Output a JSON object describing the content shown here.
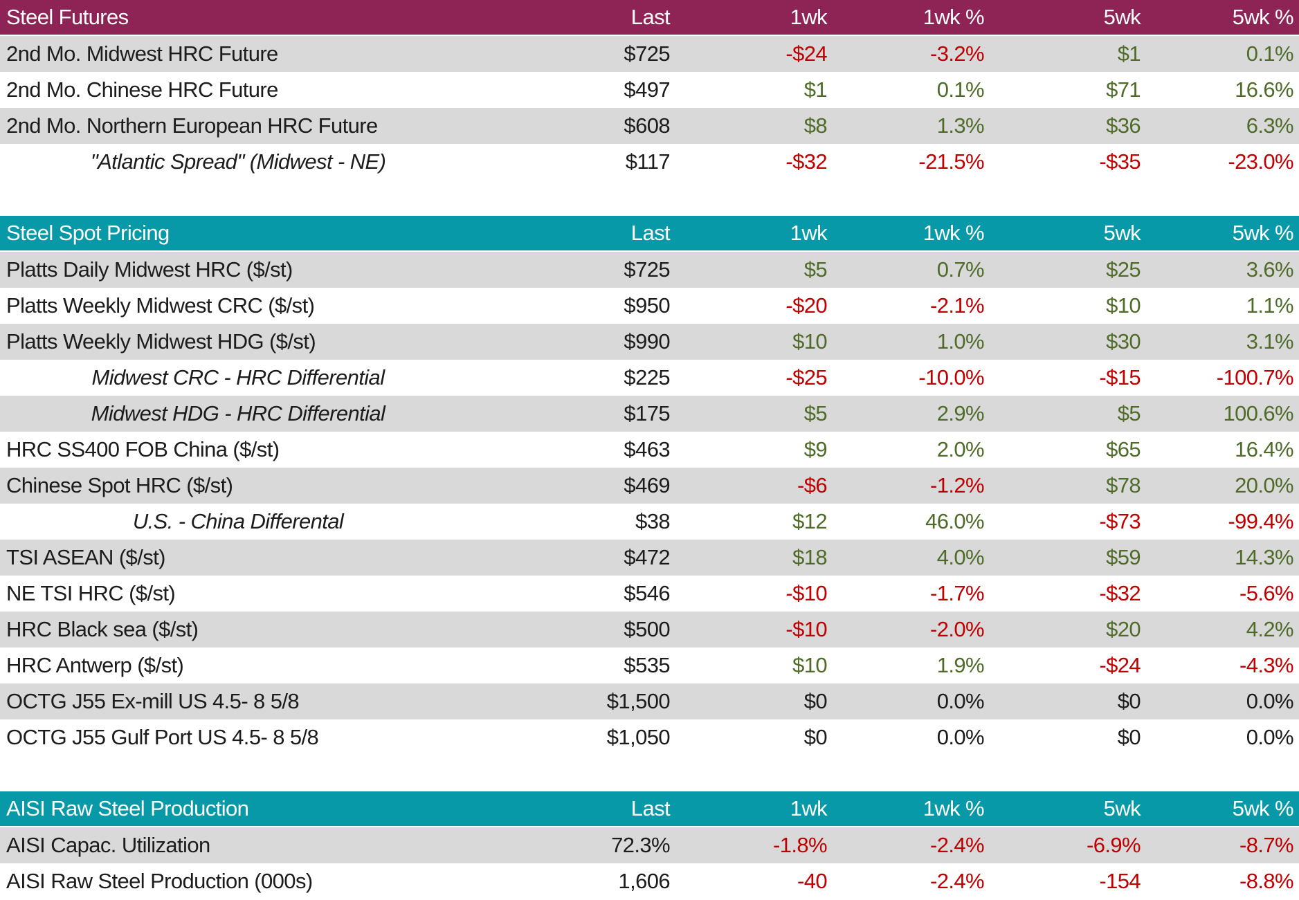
{
  "colors": {
    "maroon": "#8D2455",
    "teal": "#0899A8",
    "stripe_gray": "#D9D9D9",
    "row_white": "#FFFFFF",
    "positive": "#4F6B28",
    "negative": "#C00000",
    "neutral": "#1C1C1C",
    "header_text": "#FFFFFF"
  },
  "columns": [
    "Last",
    "1wk",
    "1wk %",
    "5wk",
    "5wk %"
  ],
  "sections": [
    {
      "title": "Steel Futures",
      "header_color_key": "maroon",
      "rows": [
        {
          "label": "2nd Mo. Midwest HRC Future",
          "italic": false,
          "values": [
            "$725",
            "-$24",
            "-3.2%",
            "$1",
            "0.1%"
          ],
          "tones": [
            "neu",
            "neg",
            "neg",
            "pos",
            "pos"
          ]
        },
        {
          "label": "2nd Mo. Chinese HRC Future",
          "italic": false,
          "values": [
            "$497",
            "$1",
            "0.1%",
            "$71",
            "16.6%"
          ],
          "tones": [
            "neu",
            "pos",
            "pos",
            "pos",
            "pos"
          ]
        },
        {
          "label": "2nd Mo. Northern European HRC Future",
          "italic": false,
          "values": [
            "$608",
            "$8",
            "1.3%",
            "$36",
            "6.3%"
          ],
          "tones": [
            "neu",
            "pos",
            "pos",
            "pos",
            "pos"
          ]
        },
        {
          "label": "\"Atlantic Spread\" (Midwest - NE)",
          "italic": true,
          "values": [
            "$117",
            "-$32",
            "-21.5%",
            "-$35",
            "-23.0%"
          ],
          "tones": [
            "neu",
            "neg",
            "neg",
            "neg",
            "neg"
          ]
        }
      ]
    },
    {
      "title": "Steel Spot Pricing",
      "header_color_key": "teal",
      "rows": [
        {
          "label": "Platts Daily Midwest HRC ($/st)",
          "italic": false,
          "values": [
            "$725",
            "$5",
            "0.7%",
            "$25",
            "3.6%"
          ],
          "tones": [
            "neu",
            "pos",
            "pos",
            "pos",
            "pos"
          ]
        },
        {
          "label": "Platts Weekly Midwest CRC ($/st)",
          "italic": false,
          "values": [
            "$950",
            "-$20",
            "-2.1%",
            "$10",
            "1.1%"
          ],
          "tones": [
            "neu",
            "neg",
            "neg",
            "pos",
            "pos"
          ]
        },
        {
          "label": "Platts Weekly Midwest HDG ($/st)",
          "italic": false,
          "values": [
            "$990",
            "$10",
            "1.0%",
            "$30",
            "3.1%"
          ],
          "tones": [
            "neu",
            "pos",
            "pos",
            "pos",
            "pos"
          ]
        },
        {
          "label": "Midwest CRC - HRC Differential",
          "italic": true,
          "values": [
            "$225",
            "-$25",
            "-10.0%",
            "-$15",
            "-100.7%"
          ],
          "tones": [
            "neu",
            "neg",
            "neg",
            "neg",
            "neg"
          ]
        },
        {
          "label": "Midwest HDG - HRC Differential",
          "italic": true,
          "values": [
            "$175",
            "$5",
            "2.9%",
            "$5",
            "100.6%"
          ],
          "tones": [
            "neu",
            "pos",
            "pos",
            "pos",
            "pos"
          ]
        },
        {
          "label": "HRC SS400 FOB China ($/st)",
          "italic": false,
          "values": [
            "$463",
            "$9",
            "2.0%",
            "$65",
            "16.4%"
          ],
          "tones": [
            "neu",
            "pos",
            "pos",
            "pos",
            "pos"
          ]
        },
        {
          "label": "Chinese Spot HRC ($/st)",
          "italic": false,
          "values": [
            "$469",
            "-$6",
            "-1.2%",
            "$78",
            "20.0%"
          ],
          "tones": [
            "neu",
            "neg",
            "neg",
            "pos",
            "pos"
          ]
        },
        {
          "label": "U.S. - China Differental",
          "italic": true,
          "values": [
            "$38",
            "$12",
            "46.0%",
            "-$73",
            "-99.4%"
          ],
          "tones": [
            "neu",
            "pos",
            "pos",
            "neg",
            "neg"
          ]
        },
        {
          "label": "TSI ASEAN ($/st)",
          "italic": false,
          "values": [
            "$472",
            "$18",
            "4.0%",
            "$59",
            "14.3%"
          ],
          "tones": [
            "neu",
            "pos",
            "pos",
            "pos",
            "pos"
          ]
        },
        {
          "label": "NE TSI HRC ($/st)",
          "italic": false,
          "values": [
            "$546",
            "-$10",
            "-1.7%",
            "-$32",
            "-5.6%"
          ],
          "tones": [
            "neu",
            "neg",
            "neg",
            "neg",
            "neg"
          ]
        },
        {
          "label": "HRC Black sea ($/st)",
          "italic": false,
          "values": [
            "$500",
            "-$10",
            "-2.0%",
            "$20",
            "4.2%"
          ],
          "tones": [
            "neu",
            "neg",
            "neg",
            "pos",
            "pos"
          ]
        },
        {
          "label": "HRC Antwerp ($/st)",
          "italic": false,
          "values": [
            "$535",
            "$10",
            "1.9%",
            "-$24",
            "-4.3%"
          ],
          "tones": [
            "neu",
            "pos",
            "pos",
            "neg",
            "neg"
          ]
        },
        {
          "label": "OCTG J55 Ex-mill US 4.5- 8 5/8",
          "italic": false,
          "values": [
            "$1,500",
            "$0",
            "0.0%",
            "$0",
            "0.0%"
          ],
          "tones": [
            "neu",
            "neu",
            "neu",
            "neu",
            "neu"
          ]
        },
        {
          "label": "OCTG J55 Gulf Port US 4.5- 8 5/8",
          "italic": false,
          "values": [
            "$1,050",
            "$0",
            "0.0%",
            "$0",
            "0.0%"
          ],
          "tones": [
            "neu",
            "neu",
            "neu",
            "neu",
            "neu"
          ]
        }
      ]
    },
    {
      "title": "AISI Raw Steel Production",
      "header_color_key": "teal",
      "rows": [
        {
          "label": "AISI Capac. Utilization",
          "italic": false,
          "values": [
            "72.3%",
            "-1.8%",
            "-2.4%",
            "-6.9%",
            "-8.7%"
          ],
          "tones": [
            "neu",
            "neg",
            "neg",
            "neg",
            "neg"
          ]
        },
        {
          "label": "AISI Raw Steel Production (000s)",
          "italic": false,
          "values": [
            "1,606",
            "-40",
            "-2.4%",
            "-154",
            "-8.8%"
          ],
          "tones": [
            "neu",
            "neg",
            "neg",
            "neg",
            "neg"
          ]
        }
      ]
    }
  ]
}
